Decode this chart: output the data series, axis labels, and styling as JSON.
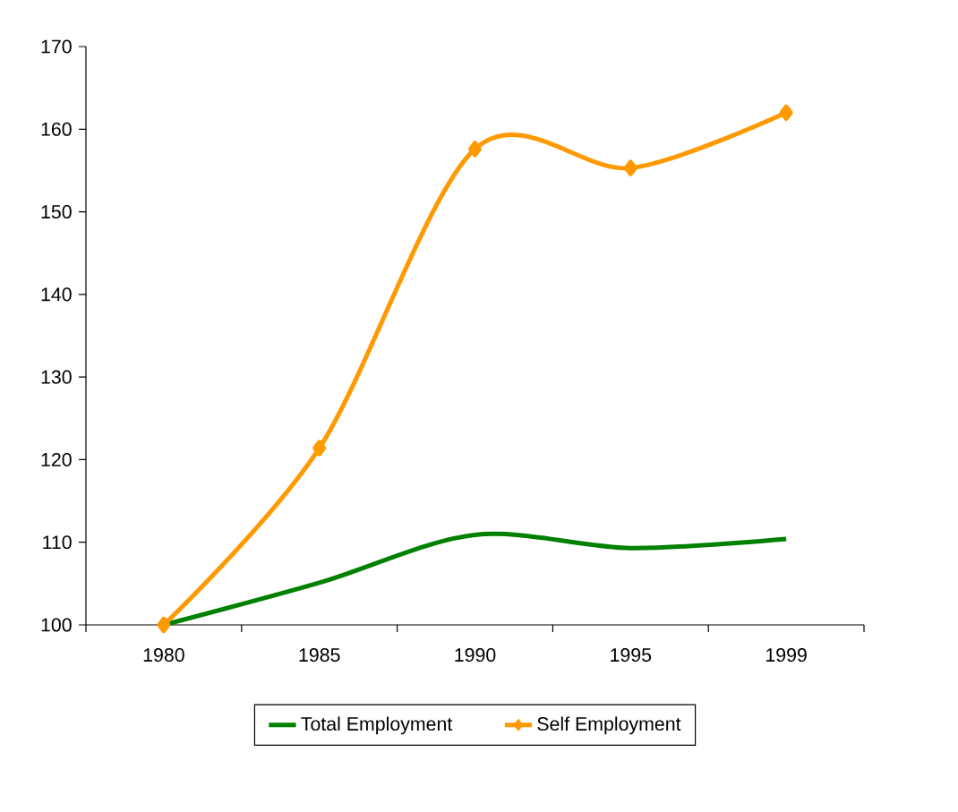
{
  "chart_data": {
    "type": "line",
    "categories": [
      "1980",
      "1985",
      "1990",
      "1995",
      "1999"
    ],
    "series": [
      {
        "name": "Total Employment",
        "color": "#008000",
        "values": [
          100,
          105.1,
          110.9,
          109.3,
          110.4
        ],
        "marker": "none"
      },
      {
        "name": "Self Employment",
        "color": "#ff9900",
        "values": [
          100,
          121.4,
          157.6,
          155.3,
          162
        ],
        "marker": "diamond"
      }
    ],
    "ylim": [
      100,
      170
    ],
    "yticks": [
      100,
      110,
      120,
      130,
      140,
      150,
      160,
      170
    ],
    "grid": false,
    "legend": "bottom",
    "line_style": "solid"
  }
}
